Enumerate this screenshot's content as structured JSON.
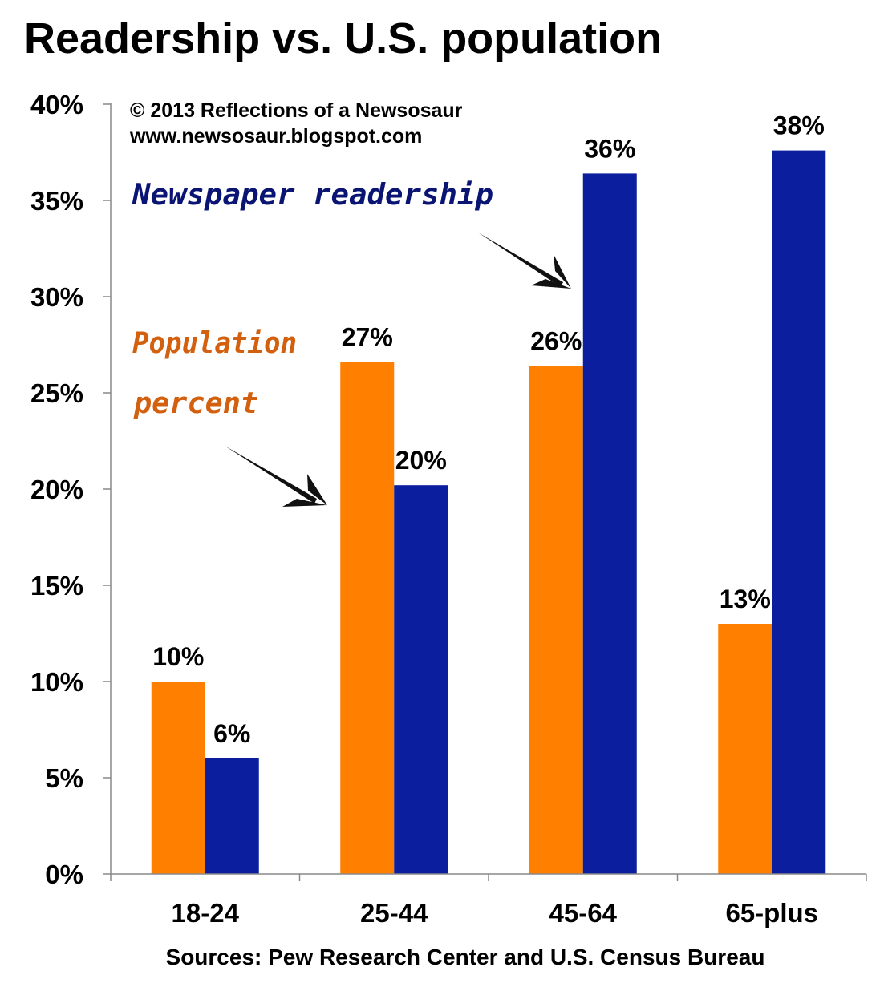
{
  "chart_data": {
    "type": "bar",
    "title": "Readership vs. U.S. population",
    "credit_lines": [
      "© 2013 Reflections of a Newsosaur",
      "www.newsosaur.blogspot.com"
    ],
    "source": "Sources: Pew Research Center and U.S. Census Bureau",
    "categories": [
      "18-24",
      "25-44",
      "45-64",
      "65-plus"
    ],
    "series": [
      {
        "name": "Population percent",
        "color": "#FF7F00",
        "values": [
          10,
          26.6,
          26.4,
          13
        ],
        "labels": [
          "10%",
          "27%",
          "26%",
          "13%"
        ]
      },
      {
        "name": "Newspaper readership",
        "color": "#0A1E9E",
        "values": [
          6,
          20.2,
          36.4,
          37.6
        ],
        "labels": [
          "6%",
          "20%",
          "36%",
          "38%"
        ]
      }
    ],
    "annotations": [
      {
        "series": 0,
        "lines": [
          "Population",
          "percent"
        ],
        "color": "#D2600E"
      },
      {
        "series": 1,
        "lines": [
          "Newspaper readership"
        ],
        "color": "#0A1473"
      }
    ],
    "ylim": [
      0,
      40
    ],
    "yticks": [
      0,
      5,
      10,
      15,
      20,
      25,
      30,
      35,
      40
    ],
    "ytick_labels": [
      "0%",
      "5%",
      "10%",
      "15%",
      "20%",
      "25%",
      "30%",
      "35%",
      "40%"
    ],
    "grid": false,
    "legend": "none"
  }
}
